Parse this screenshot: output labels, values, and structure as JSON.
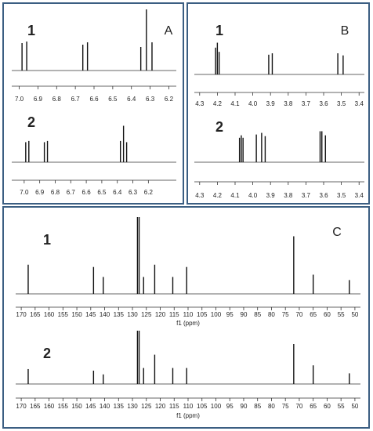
{
  "chart_data": [
    {
      "type": "spectrum",
      "panel": "A",
      "label": "1",
      "xlim": [
        7.04,
        6.16
      ],
      "ylim": [
        0,
        80
      ],
      "xticks": [
        {
          "value": 7.0,
          "label": "7.0"
        },
        6.9,
        6.8,
        6.7,
        6.6,
        6.5,
        6.4,
        6.3,
        6.2
      ],
      "peaks": {
        "x": [
          6.985,
          6.96,
          6.66,
          6.635,
          6.35,
          6.32,
          6.29
        ],
        "values": [
          35,
          37,
          33,
          36,
          30,
          78,
          36
        ]
      }
    },
    {
      "type": "spectrum",
      "label": "2",
      "xlim": [
        7.08,
        6.02
      ],
      "ylim": [
        0,
        80
      ],
      "xticks": [
        {
          "value": 7.0,
          "label": "7.0"
        },
        6.9,
        6.8,
        6.7,
        6.6,
        6.5,
        6.4,
        6.3,
        6.2
      ],
      "peaks": {
        "x": [
          6.99,
          6.97,
          6.87,
          6.85,
          6.38,
          6.36,
          6.34
        ],
        "values": [
          33,
          35,
          33,
          35,
          35,
          60,
          33
        ]
      }
    },
    {
      "type": "spectrum",
      "panel": "B",
      "label": "1",
      "xlim": [
        4.33,
        3.37
      ],
      "ylim": [
        0,
        50
      ],
      "xticks": [
        4.3,
        4.2,
        4.1,
        {
          "value": 4.0,
          "label": "4.0"
        },
        3.9,
        3.8,
        3.7,
        3.6,
        3.5,
        3.4
      ],
      "peaks": {
        "x": [
          4.21,
          4.2,
          4.19,
          3.91,
          3.89,
          3.52,
          3.49
        ],
        "values": [
          38,
          45,
          32,
          28,
          30,
          30,
          27
        ]
      }
    },
    {
      "type": "spectrum",
      "label": "2",
      "xlim": [
        4.33,
        3.37
      ],
      "ylim": [
        0,
        50
      ],
      "xticks": [
        4.3,
        4.2,
        4.1,
        {
          "value": 4.0,
          "label": "4.0"
        },
        3.9,
        3.8,
        3.7,
        3.6,
        3.5,
        3.4
      ],
      "peaks": {
        "x": [
          4.075,
          4.065,
          4.055,
          3.98,
          3.95,
          3.93,
          3.62,
          3.61,
          3.59
        ],
        "values": [
          30,
          33,
          30,
          34,
          36,
          32,
          38,
          38,
          33
        ]
      }
    },
    {
      "type": "spectrum",
      "panel": "C",
      "label": "1",
      "x_label": "f1 (ppm)",
      "xlim": [
        172,
        48
      ],
      "ylim": [
        0,
        100
      ],
      "xticks": [
        170,
        165,
        160,
        155,
        150,
        145,
        140,
        135,
        130,
        125,
        120,
        115,
        110,
        105,
        100,
        95,
        90,
        85,
        80,
        75,
        70,
        65,
        60,
        55,
        50
      ],
      "peaks": {
        "x": [
          167.5,
          144,
          140.5,
          128.2,
          127.6,
          126,
          122,
          115.5,
          110.5,
          72,
          65,
          52
        ],
        "values": [
          38,
          35,
          22,
          100,
          100,
          22,
          38,
          22,
          35,
          75,
          25,
          18
        ]
      }
    },
    {
      "type": "spectrum",
      "label": "2",
      "x_label": "f1 (ppm)",
      "xlim": [
        172,
        48
      ],
      "ylim": [
        0,
        100
      ],
      "xticks": [
        170,
        165,
        160,
        155,
        150,
        145,
        140,
        135,
        130,
        125,
        120,
        115,
        110,
        105,
        100,
        95,
        90,
        85,
        80,
        75,
        70,
        65,
        60,
        55,
        50
      ],
      "peaks": {
        "x": [
          167.5,
          144,
          140.5,
          128.2,
          127.6,
          126,
          122,
          115.5,
          110.5,
          72,
          65,
          52
        ],
        "values": [
          28,
          25,
          18,
          100,
          100,
          30,
          55,
          30,
          30,
          75,
          35,
          20
        ]
      }
    }
  ]
}
